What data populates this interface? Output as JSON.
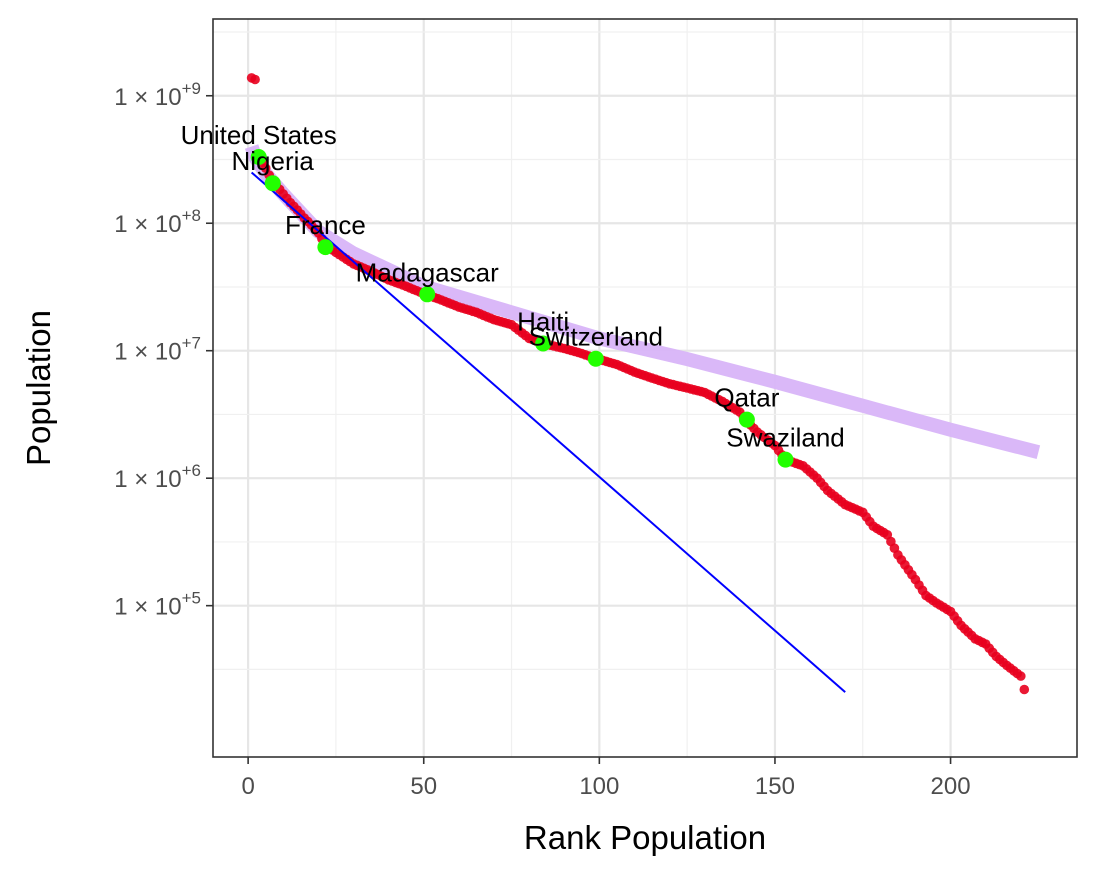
{
  "chart_data": {
    "type": "scatter",
    "xlabel": "Rank Population",
    "ylabel": "Population",
    "x_scale": "linear",
    "y_scale": "log10",
    "xlim": [
      -10,
      236
    ],
    "ylim": [
      6500,
      4000000000
    ],
    "x_ticks": [
      0,
      50,
      100,
      150,
      200
    ],
    "x_tick_labels": [
      "0",
      "50",
      "100",
      "150",
      "200"
    ],
    "y_ticks": [
      100000,
      1000000,
      10000000,
      100000000,
      1000000000
    ],
    "y_tick_labels": [
      {
        "base": "1 × 10",
        "exp": "+5"
      },
      {
        "base": "1 × 10",
        "exp": "+6"
      },
      {
        "base": "1 × 10",
        "exp": "+7"
      },
      {
        "base": "1 × 10",
        "exp": "+8"
      },
      {
        "base": "1 × 10",
        "exp": "+9"
      }
    ],
    "grid": true,
    "series": [
      {
        "kind": "points",
        "color": "#e8001e",
        "data_rank_anchors": [
          [
            1,
            1380000000
          ],
          [
            2,
            1340000000
          ],
          [
            3,
            330000000
          ],
          [
            5,
            270000000
          ],
          [
            7,
            210000000
          ],
          [
            8,
            200000000
          ],
          [
            10,
            170000000
          ],
          [
            12,
            145000000
          ],
          [
            14,
            127000000
          ],
          [
            16,
            110000000
          ],
          [
            18,
            97000000
          ],
          [
            20,
            84000000
          ],
          [
            22,
            68000000
          ],
          [
            25,
            59000000
          ],
          [
            30,
            48000000
          ],
          [
            35,
            42000000
          ],
          [
            40,
            36000000
          ],
          [
            45,
            32000000
          ],
          [
            50,
            28000000
          ],
          [
            55,
            25000000
          ],
          [
            60,
            22000000
          ],
          [
            65,
            20000000
          ],
          [
            70,
            17500000
          ],
          [
            75,
            16000000
          ],
          [
            80,
            12500000
          ],
          [
            84,
            11400000
          ],
          [
            90,
            10400000
          ],
          [
            95,
            9500000
          ],
          [
            99,
            8700000
          ],
          [
            105,
            7800000
          ],
          [
            110,
            6800000
          ],
          [
            115,
            6100000
          ],
          [
            120,
            5500000
          ],
          [
            125,
            5100000
          ],
          [
            130,
            4700000
          ],
          [
            135,
            4000000
          ],
          [
            140,
            3300000
          ],
          [
            142,
            2800000
          ],
          [
            145,
            2300000
          ],
          [
            150,
            1800000
          ],
          [
            153,
            1400000
          ],
          [
            158,
            1250000
          ],
          [
            162,
            1000000
          ],
          [
            165,
            800000
          ],
          [
            170,
            620000
          ],
          [
            175,
            540000
          ],
          [
            178,
            420000
          ],
          [
            182,
            360000
          ],
          [
            185,
            250000
          ],
          [
            190,
            160000
          ],
          [
            193,
            120000
          ],
          [
            196,
            105000
          ],
          [
            200,
            90000
          ],
          [
            203,
            70000
          ],
          [
            207,
            55000
          ],
          [
            210,
            50000
          ],
          [
            213,
            40000
          ],
          [
            216,
            34000
          ],
          [
            220,
            28000
          ],
          [
            221,
            22000
          ]
        ]
      }
    ],
    "highlighted": [
      {
        "label": "United States",
        "x": 3,
        "y": 331000000
      },
      {
        "label": "Nigeria",
        "x": 7,
        "y": 206000000
      },
      {
        "label": "France",
        "x": 22,
        "y": 65000000
      },
      {
        "label": "Madagascar",
        "x": 51,
        "y": 27700000
      },
      {
        "label": "Haiti",
        "x": 84,
        "y": 11400000
      },
      {
        "label": "Switzerland",
        "x": 99,
        "y": 8650000
      },
      {
        "label": "Qatar",
        "x": 142,
        "y": 2880000
      },
      {
        "label": "Swaziland",
        "x": 153,
        "y": 1400000
      }
    ],
    "fit_lines": [
      {
        "kind": "exponential",
        "color": "#0000ff",
        "points": [
          [
            1,
            250000000
          ],
          [
            170,
            21000
          ]
        ]
      },
      {
        "kind": "power-law",
        "color": "#d8b4f8",
        "points": [
          [
            1,
            400000000
          ],
          [
            2,
            330000000
          ],
          [
            5,
            245000000
          ],
          [
            10,
            170000000
          ],
          [
            20,
            86000000
          ],
          [
            30,
            58000000
          ],
          [
            50,
            32000000
          ],
          [
            75,
            20000000
          ],
          [
            100,
            12500000
          ],
          [
            125,
            8600000
          ],
          [
            150,
            5700000
          ],
          [
            175,
            3700000
          ],
          [
            200,
            2400000
          ],
          [
            225,
            1600000
          ]
        ]
      }
    ],
    "colors": {
      "points": "#e8001e",
      "highlight": "#22ff00",
      "exponential_fit": "#0000ff",
      "power_fit": "#d8b4f8"
    }
  }
}
